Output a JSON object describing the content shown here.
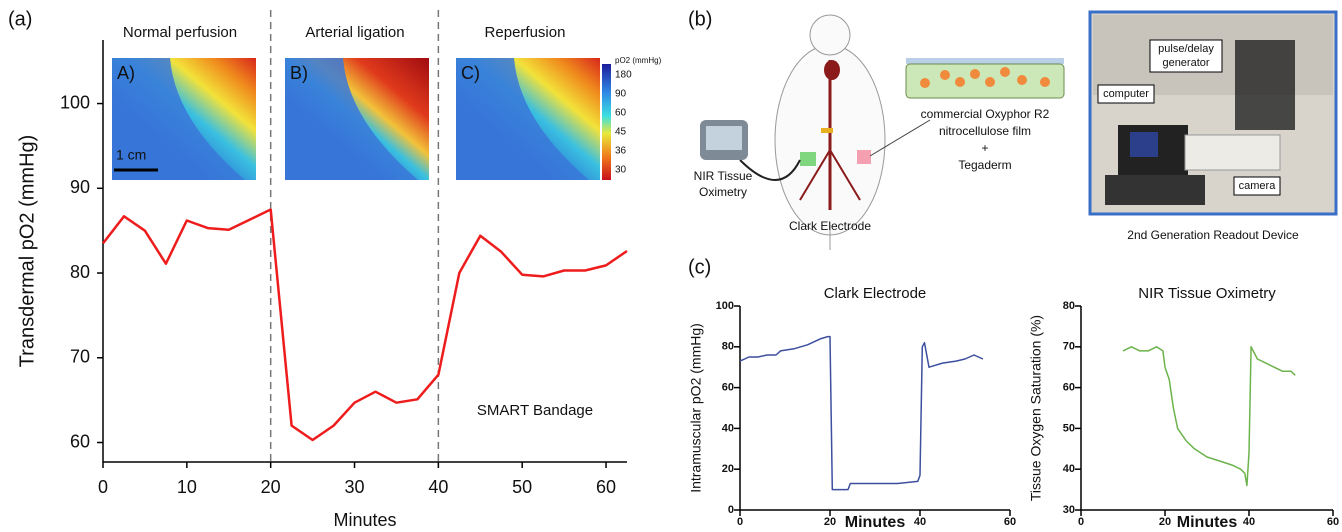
{
  "figure": {
    "panel_a": "(a)",
    "panel_b": "(b)",
    "panel_c": "(c)",
    "phases": [
      "Normal perfusion",
      "Arterial ligation",
      "Reperfusion"
    ],
    "image_labels": [
      "A)",
      "B)",
      "C)"
    ],
    "scale_bar": "1 cm",
    "colorbar": {
      "title": "pO2 (mmHg)",
      "ticks": [
        180,
        90,
        60,
        45,
        36,
        30
      ]
    },
    "annotation": "SMART Bandage",
    "diagram": {
      "oximetry": [
        "NIR Tissue",
        "Oximetry"
      ],
      "electrode": "Clark Electrode",
      "film": [
        "commercial Oxyphor R2",
        "nitrocellulose film",
        "+",
        "Tegaderm"
      ],
      "computer": "computer",
      "generator": [
        "pulse/delay",
        "generator"
      ],
      "camera": "camera",
      "device": "2nd Generation Readout Device"
    }
  },
  "chart_data": [
    {
      "type": "line",
      "xlabel": "Minutes",
      "ylabel": "Transdermal pO2 (mmHg)",
      "color": "#ee1c1c",
      "x": [
        0,
        2.5,
        5,
        7.5,
        10,
        12.5,
        15,
        20,
        22.5,
        25,
        27.5,
        30,
        32.5,
        35,
        37.5,
        40,
        42.5,
        45,
        47.5,
        50,
        52.5,
        55,
        57.5,
        60,
        62.5
      ],
      "values": [
        83.5,
        86.7,
        85,
        81.1,
        86.2,
        85.3,
        85.1,
        87.5,
        62,
        60.3,
        62,
        64.7,
        66,
        64.7,
        65.1,
        68,
        80,
        84.4,
        82.5,
        79.8,
        79.6,
        80.3,
        80.3,
        80.9,
        82.6
      ],
      "vlines": [
        20,
        40
      ],
      "xlim": [
        0,
        62.5
      ],
      "xticks": [
        0,
        10,
        20,
        30,
        40,
        50,
        60
      ],
      "ylim": [
        57.7,
        107.5
      ],
      "yticks": [
        60,
        70,
        80,
        90,
        100
      ]
    },
    {
      "type": "line",
      "title": "Clark Electrode",
      "xlabel": "Minutes",
      "ylabel": "Intramuscular pO2 (mmHg)",
      "color": "#3d4f9f",
      "x": [
        0,
        2,
        4,
        6,
        8,
        9,
        12,
        15,
        18,
        19.5,
        20,
        20.5,
        22,
        24,
        24.5,
        27,
        30,
        35,
        39.5,
        40,
        40.5,
        41,
        42,
        45,
        48,
        50,
        52,
        54
      ],
      "values": [
        73,
        75,
        75,
        76,
        76,
        78,
        79,
        81,
        84,
        85,
        85,
        10,
        10,
        10,
        13,
        13,
        13,
        13,
        14,
        17,
        80,
        82,
        70,
        72,
        73,
        74,
        76,
        74
      ],
      "xlim": [
        0,
        60
      ],
      "xticks": [
        0,
        20,
        40,
        60
      ],
      "ylim": [
        0,
        100
      ],
      "yticks": [
        0,
        20,
        40,
        60,
        80,
        100
      ]
    },
    {
      "type": "line",
      "title": "NIR Tissue Oximetry",
      "xlabel": "Minutes",
      "ylabel": "Tissue Oxygen Saturation (%)",
      "color": "#6cb34c",
      "x": [
        10,
        12,
        14,
        16,
        18,
        19.5,
        20,
        21,
        22,
        23,
        25,
        27,
        30,
        33,
        36,
        38,
        39,
        39.5,
        40,
        40.5,
        42,
        44,
        46,
        48,
        50,
        51
      ],
      "values": [
        69,
        70,
        69,
        69,
        70,
        69,
        65,
        62,
        55,
        50,
        47,
        45,
        43,
        42,
        41,
        40,
        39,
        36,
        44,
        70,
        67,
        66,
        65,
        64,
        64,
        63
      ],
      "xlim": [
        0,
        60
      ],
      "xticks": [
        0,
        20,
        40,
        60
      ],
      "ylim": [
        30,
        80
      ],
      "yticks": [
        30,
        40,
        50,
        60,
        70,
        80
      ]
    }
  ]
}
